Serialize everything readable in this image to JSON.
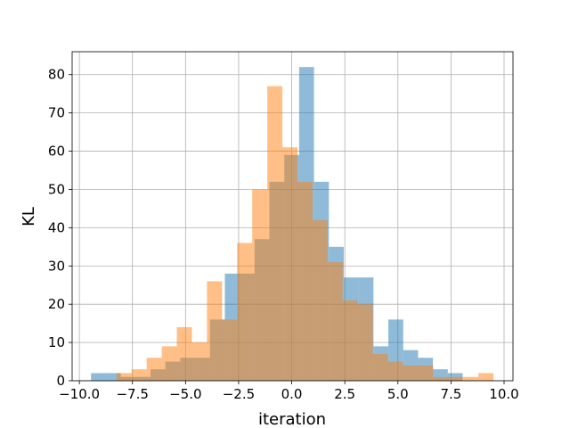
{
  "chart_data": {
    "type": "histogram",
    "x_label": "iteration",
    "y_label": "KL",
    "xlim": [
      -10.34,
      10.42
    ],
    "ylim": [
      0,
      86
    ],
    "xticks": [
      {
        "value": -10,
        "label": "−10.0"
      },
      {
        "value": -7.5,
        "label": "−7.5"
      },
      {
        "value": -5,
        "label": "−5.0"
      },
      {
        "value": -2.5,
        "label": "−2.5"
      },
      {
        "value": 0,
        "label": "0.0"
      },
      {
        "value": 2.5,
        "label": "2.5"
      },
      {
        "value": 5,
        "label": "5.0"
      },
      {
        "value": 7.5,
        "label": "7.5"
      },
      {
        "value": 10,
        "label": "10.0"
      }
    ],
    "yticks": [
      0,
      10,
      20,
      30,
      40,
      50,
      60,
      70,
      80
    ],
    "grid": true,
    "opacity": 0.5,
    "series": [
      {
        "color": "#1f77b4",
        "bins": [
          -9.45,
          -8.75,
          -8.05,
          -7.35,
          -6.65,
          -5.95,
          -5.25,
          -4.55,
          -3.85,
          -3.15,
          -2.45,
          -1.75,
          -1.05,
          -0.35,
          0.35,
          1.05,
          1.75,
          2.45,
          3.15,
          3.85,
          4.55,
          5.25,
          5.95,
          6.65,
          7.35,
          8.05
        ],
        "values": [
          2,
          2,
          1,
          1,
          3,
          5,
          6,
          6,
          16,
          28,
          28,
          37,
          52,
          59,
          82,
          52,
          35,
          27,
          27,
          9,
          16,
          8,
          6,
          3,
          2
        ]
      },
      {
        "color": "#ff7f0e",
        "bins": [
          -8.25,
          -7.54,
          -6.83,
          -6.12,
          -5.41,
          -4.7,
          -3.99,
          -3.28,
          -2.57,
          -1.86,
          -1.15,
          -0.44,
          0.27,
          0.98,
          1.69,
          2.4,
          3.11,
          3.82,
          4.53,
          5.24,
          5.95,
          6.66,
          7.37,
          8.08,
          8.79,
          9.5
        ],
        "values": [
          2,
          3,
          6,
          9,
          14,
          10,
          26,
          16,
          36,
          50,
          77,
          61,
          52,
          42,
          31,
          21,
          20,
          7,
          5,
          4,
          4,
          1,
          1,
          1,
          2
        ]
      }
    ]
  }
}
